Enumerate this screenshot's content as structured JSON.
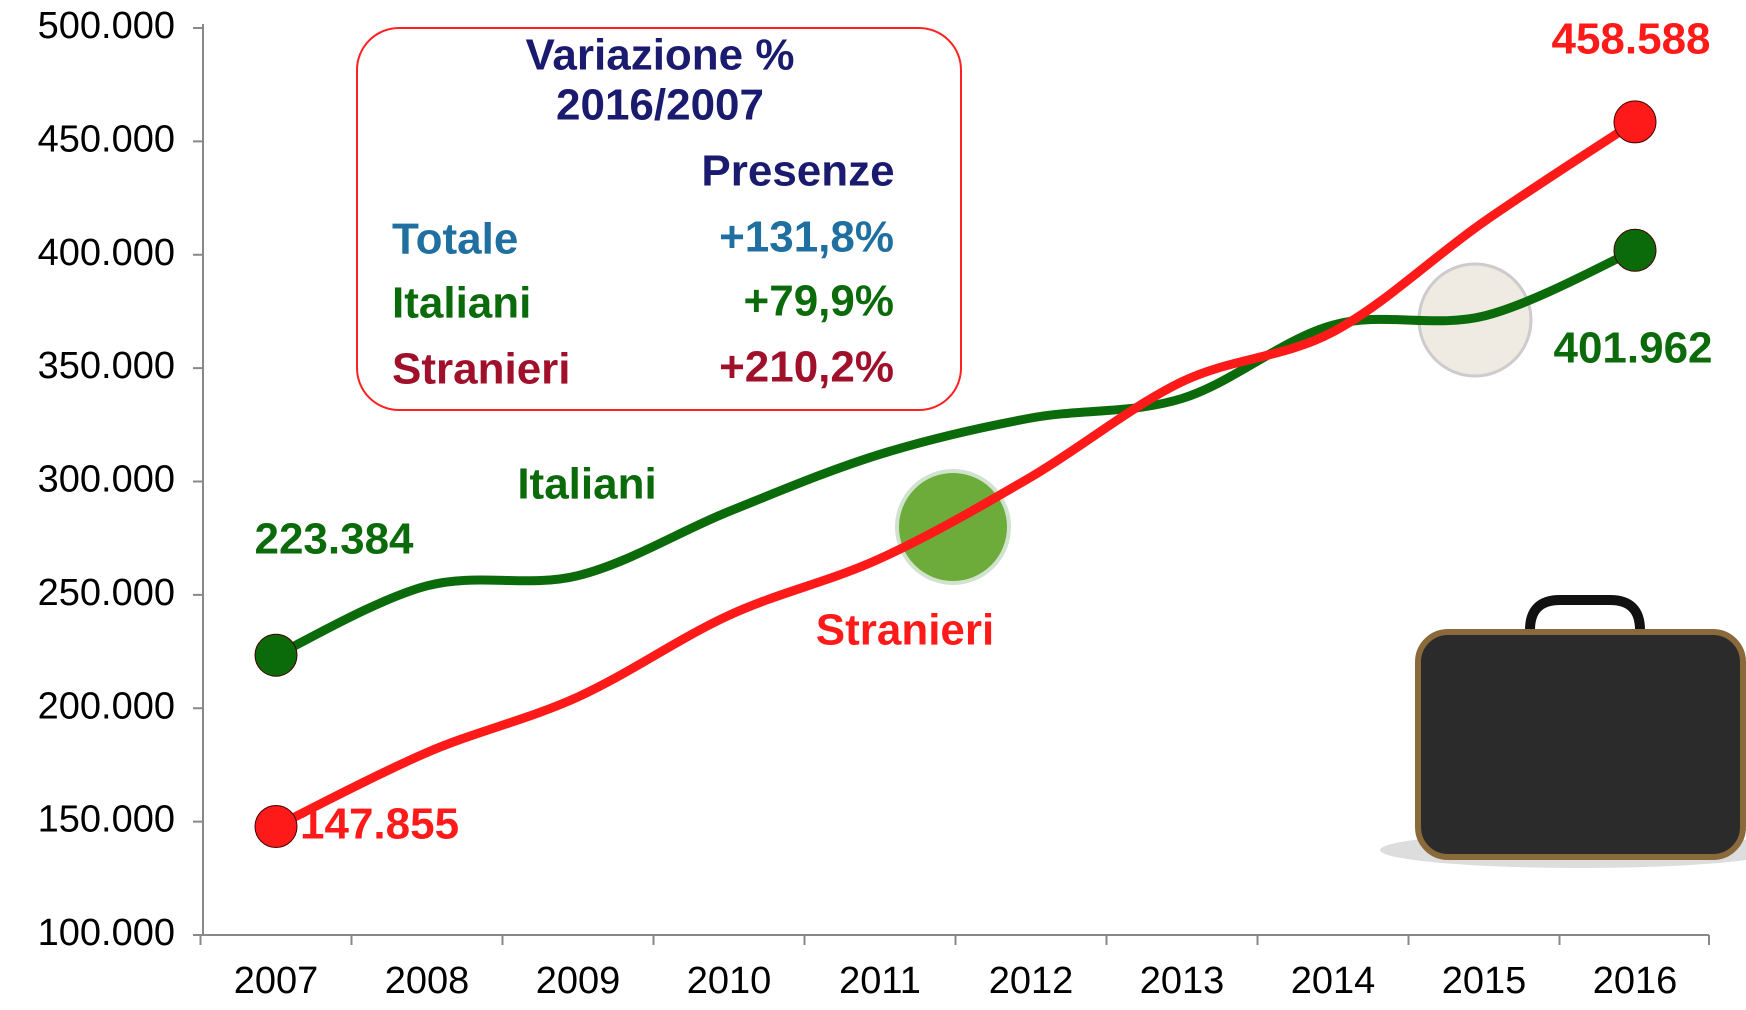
{
  "chart_data": {
    "type": "line",
    "categories": [
      "2007",
      "2008",
      "2009",
      "2010",
      "2011",
      "2012",
      "2013",
      "2014",
      "2015",
      "2016"
    ],
    "series": [
      {
        "name": "Italiani",
        "color": "#0b6b0b",
        "values": [
          223384,
          254000,
          258500,
          286800,
          312000,
          328000,
          336600,
          369000,
          373000,
          401962
        ],
        "value_labels": [
          "223.384",
          null,
          null,
          null,
          null,
          null,
          null,
          null,
          null,
          "401.962"
        ]
      },
      {
        "name": "Stranieri",
        "color": "#ff1a1a",
        "values": [
          147855,
          180500,
          205000,
          241000,
          266000,
          302000,
          344000,
          366000,
          414600,
          458588
        ],
        "value_labels": [
          "147.855",
          null,
          null,
          null,
          null,
          null,
          null,
          null,
          null,
          "458.588"
        ]
      }
    ],
    "ylim": [
      100000,
      500000
    ],
    "yticks": [
      {
        "value": 100000,
        "label": "100.000"
      },
      {
        "value": 150000,
        "label": "150.000"
      },
      {
        "value": 200000,
        "label": "200.000"
      },
      {
        "value": 250000,
        "label": "250.000"
      },
      {
        "value": 300000,
        "label": "300.000"
      },
      {
        "value": 350000,
        "label": "350.000"
      },
      {
        "value": 400000,
        "label": "400.000"
      },
      {
        "value": 450000,
        "label": "450.000"
      },
      {
        "value": 500000,
        "label": "500.000"
      }
    ],
    "grid": false,
    "annotation": {
      "title": [
        "Variazione %",
        "2016/2007"
      ],
      "column": "Presenze",
      "rows": [
        {
          "label": "Totale",
          "value": "+131,8%"
        },
        {
          "label": "Italiani",
          "value": "+79,9%"
        },
        {
          "label": "Stranieri",
          "value": "+210,2%"
        }
      ]
    }
  }
}
